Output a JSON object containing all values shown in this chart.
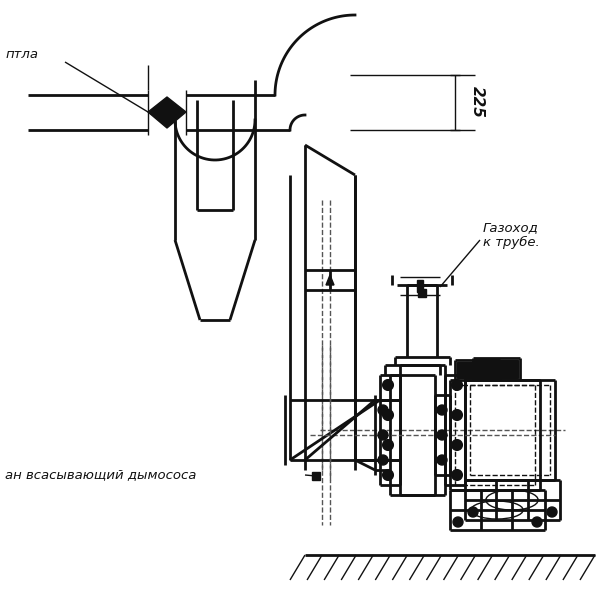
{
  "bg_color": "#ffffff",
  "line_color": "#111111",
  "lw_main": 2.0,
  "lw_thin": 1.0,
  "fig_width": 6.0,
  "fig_height": 6.0,
  "label_otla": "птла",
  "label_gazokhod": "Газоход\nк трубе.",
  "label_ventilyator": "ан всасывающий дымососа",
  "dim_225": "225"
}
